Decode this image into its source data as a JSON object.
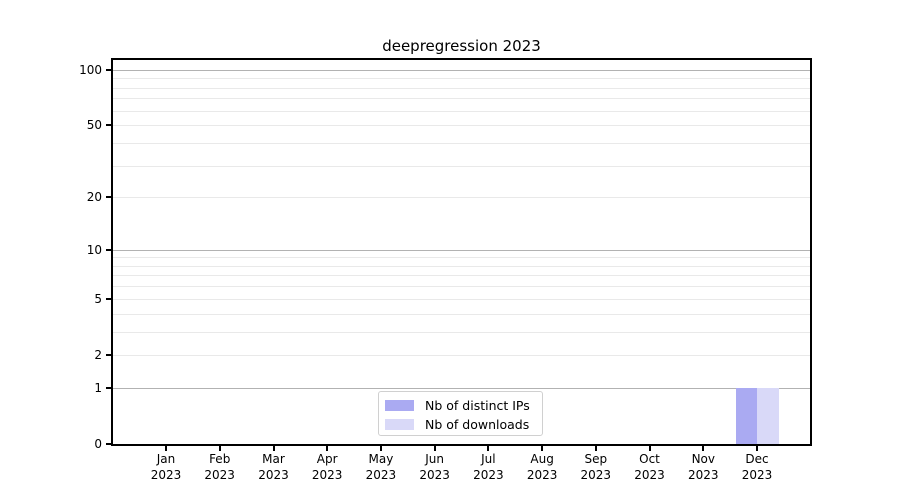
{
  "chart_data": {
    "type": "bar",
    "title": "deepregression 2023",
    "categories": [
      "Jan 2023",
      "Feb 2023",
      "Mar 2023",
      "Apr 2023",
      "May 2023",
      "Jun 2023",
      "Jul 2023",
      "Aug 2023",
      "Sep 2023",
      "Oct 2023",
      "Nov 2023",
      "Dec 2023"
    ],
    "series": [
      {
        "name": "Nb of distinct IPs",
        "color": "#aaaaf2",
        "values": [
          0,
          0,
          0,
          0,
          0,
          0,
          0,
          0,
          0,
          0,
          0,
          1
        ]
      },
      {
        "name": "Nb of downloads",
        "color": "#d9d9f8",
        "values": [
          0,
          0,
          0,
          0,
          0,
          0,
          0,
          0,
          0,
          0,
          0,
          1
        ]
      }
    ],
    "yscale": "log1p",
    "ylim": [
      0,
      113
    ],
    "yticks": [
      0,
      1,
      2,
      5,
      10,
      20,
      50,
      100
    ],
    "major_grid_values": [
      1,
      10,
      100
    ],
    "minor_grid_values": [
      2,
      3,
      4,
      5,
      6,
      7,
      8,
      9,
      20,
      30,
      40,
      50,
      60,
      70,
      80,
      90
    ],
    "grid": true,
    "legend_position": "lower center",
    "colors": {
      "major_grid": "#b2b2b2",
      "minor_grid": "#e9e9e9",
      "spine": "#000000",
      "tick": "#000000",
      "legend_border": "#d0d0d0",
      "background": "#ffffff"
    }
  }
}
